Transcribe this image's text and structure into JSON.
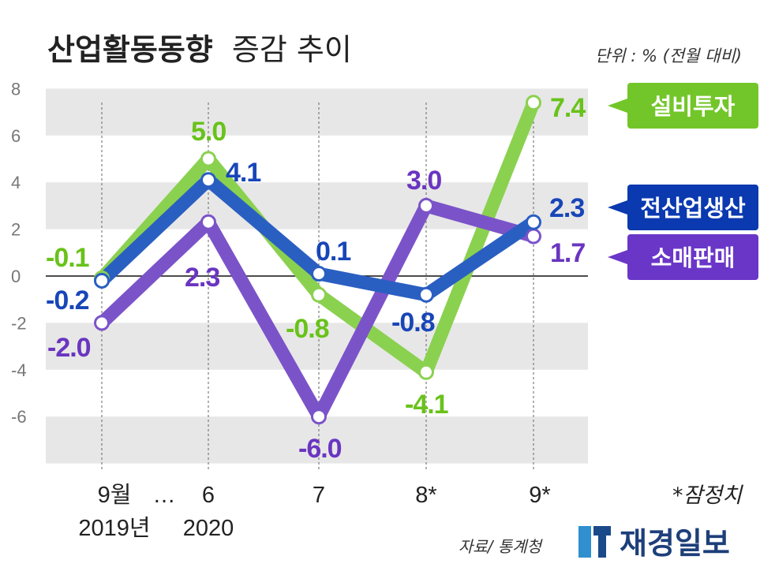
{
  "title": {
    "bold": "산업활동동향",
    "normal": "증감 추이"
  },
  "unit_note": "단위 : % (전월 대비)",
  "footnote": "*잠정치",
  "source": "자료/ 통계청",
  "logo": {
    "text": "재경일보",
    "mark": "icon-logo"
  },
  "x_axis": {
    "labels": [
      "9월",
      "…",
      "6",
      "7",
      "8*",
      "9*"
    ],
    "years": [
      "2019년",
      "2020"
    ]
  },
  "colors": {
    "green": "#8bd150",
    "green_text": "#69c21a",
    "green_tag": "#73c629",
    "blue": "#2a5fc2",
    "blue_text": "#1846b8",
    "blue_tag": "#0a39b0",
    "purple": "#7b53c9",
    "purple_text": "#6a35c0",
    "purple_tag": "#6a36c8",
    "band": "#e7e7e7",
    "axis_text": "#777777"
  },
  "chart_data": {
    "type": "line",
    "categories": [
      "9월 2019년",
      "6 2020",
      "7",
      "8*",
      "9*"
    ],
    "ylim": [
      -8,
      8
    ],
    "yticks": [
      -6,
      -4,
      -2,
      0,
      2,
      4,
      6,
      8
    ],
    "grid": "alternating horizontal bands",
    "legend": "right-side tags",
    "series": [
      {
        "name": "설비투자",
        "values": [
          -0.1,
          5.0,
          -0.8,
          -4.1,
          7.4
        ],
        "labels": [
          "-0.1",
          "5.0",
          "-0.8",
          "-4.1",
          "7.4"
        ],
        "color": "#8bd150"
      },
      {
        "name": "소매판매",
        "values": [
          -2.0,
          2.3,
          -6.0,
          3.0,
          1.7
        ],
        "labels": [
          "-2.0",
          "2.3",
          "-6.0",
          "3.0",
          "1.7"
        ],
        "color": "#7b53c9"
      },
      {
        "name": "전산업생산",
        "values": [
          -0.2,
          4.1,
          0.1,
          -0.8,
          2.3
        ],
        "labels": [
          "-0.2",
          "4.1",
          "0.1",
          "-0.8",
          "2.3"
        ],
        "color": "#2a5fc2"
      }
    ]
  }
}
